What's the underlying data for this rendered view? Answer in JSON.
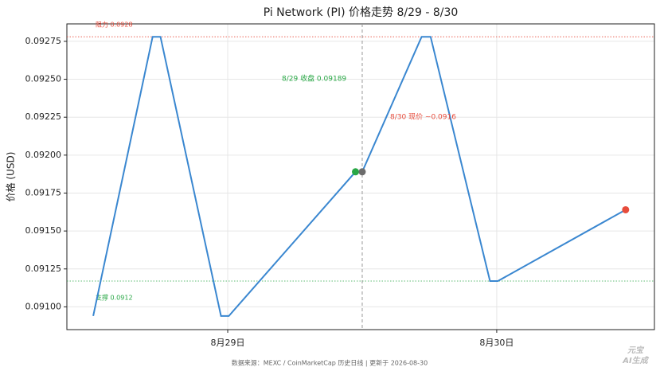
{
  "chart_data": {
    "type": "line",
    "title": "Pi Network (PI) 价格走势  8/29 - 8/30",
    "y_label": "价格 (USD)",
    "x": [
      -12,
      -6.7,
      -6,
      -0.6,
      0.1,
      11.4,
      12,
      17.3,
      18.1,
      23.4,
      24.1,
      35.5
    ],
    "series": [
      {
        "color": "#3a87d0",
        "values": [
          0.09094,
          0.09278,
          0.09278,
          0.09094,
          0.09094,
          0.09189,
          0.09189,
          0.09278,
          0.09278,
          0.09117,
          0.09117,
          0.09164
        ]
      }
    ],
    "xlim": [
      -14.35,
      38.07
    ],
    "xticks": [
      {
        "value": 0,
        "label": "8月29日"
      },
      {
        "value": 24,
        "label": "8月30日"
      }
    ],
    "ylim": [
      0.09085,
      0.092865
    ],
    "yticks": [
      {
        "value": 0.091,
        "label": "0.09100"
      },
      {
        "value": 0.09125,
        "label": "0.09125"
      },
      {
        "value": 0.0915,
        "label": "0.09150"
      },
      {
        "value": 0.09175,
        "label": "0.09175"
      },
      {
        "value": 0.092,
        "label": "0.09200"
      },
      {
        "value": 0.09225,
        "label": "0.09225"
      },
      {
        "value": 0.0925,
        "label": "0.09250"
      },
      {
        "value": 0.09275,
        "label": "0.09275"
      }
    ],
    "grid": true,
    "markers": [
      {
        "x": 11.4,
        "y": 0.09189,
        "color": "#28a745"
      },
      {
        "x": 12,
        "y": 0.09189,
        "color": "#6c6c6c"
      },
      {
        "x": 35.5,
        "y": 0.09164,
        "color": "#e74c3c"
      }
    ],
    "hlines": [
      {
        "value": 0.09278,
        "color": "#e74c3c",
        "label": "阻力 0.0928"
      },
      {
        "value": 0.09117,
        "color": "#28a745",
        "label": "支撑 0.0912"
      }
    ],
    "vline": 12,
    "annotations": [
      {
        "text": "8/29 收盘 0.09189",
        "color": "#28a745"
      },
      {
        "text": "8/30 现价 ~0.0916",
        "color": "#e74c3c"
      }
    ],
    "footer": "数据来源：MEXC / CoinMarketCap 历史日线  |  更新于 2026-08-30",
    "watermark": [
      "元宝",
      "AI生成"
    ]
  }
}
